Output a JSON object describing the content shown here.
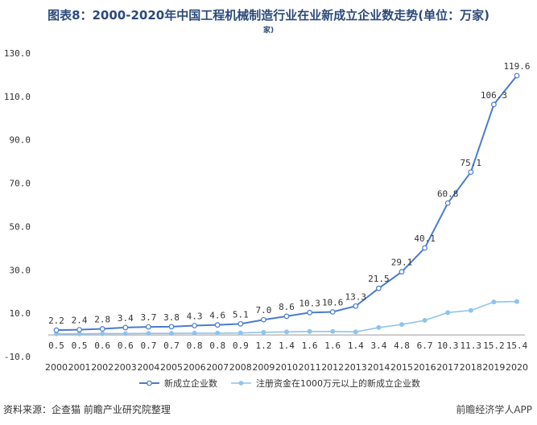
{
  "title": "图表8：2000-2020年中国工程机械制造行业在业新成立企业数走势(单位：万家)",
  "title_line2": "家)",
  "source": "资料来源：企查猫 前瞻产业研究院整理",
  "brand": "前瞻经济学人APP",
  "colors": {
    "series1": "#4a7bd0",
    "series2": "#8ec4ee",
    "axis": "#9a9a9a",
    "text": "#333333"
  },
  "chart_data": {
    "type": "line",
    "title": "图表8：2000-2020年中国工程机械制造行业在业新成立企业数走势(单位：万家)",
    "xlabel": "",
    "ylabel": "",
    "x": [
      "2000",
      "2001",
      "2002",
      "2003",
      "2004",
      "2005",
      "2006",
      "2007",
      "2008",
      "2009",
      "2010",
      "2011",
      "2012",
      "2013",
      "2014",
      "2015",
      "2016",
      "2017",
      "2018",
      "2019",
      "2020"
    ],
    "ylim": [
      -10,
      130
    ],
    "yticks": [
      "-10.0",
      "10.0",
      "30.0",
      "50.0",
      "70.0",
      "90.0",
      "110.0",
      "130.0"
    ],
    "ytick_values": [
      -10,
      10,
      30,
      50,
      70,
      90,
      110,
      130
    ],
    "grid": false,
    "legend": "bottom",
    "series": [
      {
        "name": "新成立企业数",
        "values": [
          2.2,
          2.4,
          2.8,
          3.4,
          3.7,
          3.8,
          4.3,
          4.6,
          5.1,
          7.0,
          8.6,
          10.3,
          10.6,
          13.3,
          21.5,
          29.1,
          40.1,
          60.8,
          75.1,
          106.3,
          119.6
        ],
        "labels": [
          "2.2",
          "2.4",
          "2.8",
          "3.4",
          "3.7",
          "3.8",
          "4.3",
          "4.6",
          "5.1",
          "7.0",
          "8.6",
          "10.3",
          "10.6",
          "13.3",
          "21.5",
          "29.1",
          "40.1",
          "60.8",
          "75.1",
          "106.3",
          "119.6"
        ]
      },
      {
        "name": "注册资金在1000万元以上的新成立企业数",
        "values": [
          0.5,
          0.5,
          0.6,
          0.6,
          0.7,
          0.7,
          0.8,
          0.8,
          0.9,
          1.2,
          1.4,
          1.6,
          1.6,
          1.4,
          3.4,
          4.8,
          6.7,
          10.3,
          11.3,
          15.2,
          15.4
        ],
        "labels": [
          "0.5",
          "0.5",
          "0.6",
          "0.6",
          "0.7",
          "0.7",
          "0.8",
          "0.8",
          "0.9",
          "1.2",
          "1.4",
          "1.6",
          "1.6",
          "1.4",
          "3.4",
          "4.8",
          "6.7",
          "10.3",
          "11.3",
          "15.2",
          "15.4"
        ]
      }
    ]
  }
}
